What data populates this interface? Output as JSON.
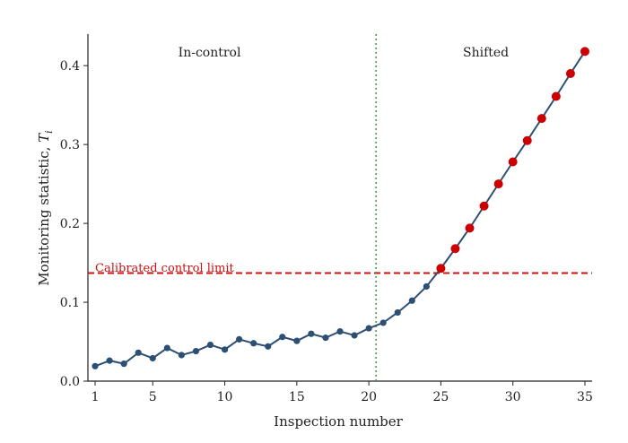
{
  "chart_data": {
    "type": "line",
    "xlabel": "Inspection number",
    "ylabel": "Monitoring statistic, ",
    "ylabel_symbol": "T",
    "ylabel_subscript": "i",
    "xlim": [
      0.5,
      35.5
    ],
    "ylim": [
      0.0,
      0.44
    ],
    "xticks": [
      1,
      5,
      10,
      15,
      20,
      25,
      30,
      35
    ],
    "xtick_labels": [
      "1",
      "5",
      "10",
      "15",
      "20",
      "25",
      "30",
      "35"
    ],
    "yticks": [
      0.0,
      0.1,
      0.2,
      0.3,
      0.4
    ],
    "ytick_labels": [
      "0.0",
      "0.1",
      "0.2",
      "0.3",
      "0.4"
    ],
    "grid": false,
    "series": [
      {
        "color": "#2c4f73",
        "x": [
          1,
          2,
          3,
          4,
          5,
          6,
          7,
          8,
          9,
          10,
          11,
          12,
          13,
          14,
          15,
          16,
          17,
          18,
          19,
          20,
          21,
          22,
          23,
          24,
          25,
          26,
          27,
          28,
          29,
          30,
          31,
          32,
          33,
          34,
          35
        ],
        "y": [
          0.019,
          0.026,
          0.022,
          0.036,
          0.029,
          0.042,
          0.033,
          0.038,
          0.046,
          0.04,
          0.053,
          0.048,
          0.044,
          0.056,
          0.051,
          0.06,
          0.055,
          0.063,
          0.058,
          0.067,
          0.074,
          0.087,
          0.102,
          0.12,
          0.143,
          0.168,
          0.194,
          0.222,
          0.25,
          0.278,
          0.305,
          0.333,
          0.361,
          0.39,
          0.418
        ]
      }
    ],
    "out_of_control_color": "#cc0000",
    "out_of_control_from_x": 25,
    "control_limit": {
      "value": 0.137,
      "label": "Calibrated control limit",
      "color": "#cc1111",
      "style": "dashed"
    },
    "change_point": {
      "x": 20.5,
      "color": "#4a9a4a",
      "style": "dotted"
    },
    "regions": [
      {
        "label": "In-control"
      },
      {
        "label": "Shifted"
      }
    ]
  }
}
